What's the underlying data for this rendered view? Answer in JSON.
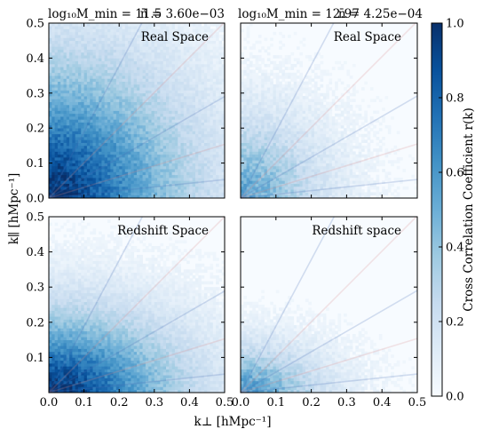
{
  "chart_data": {
    "type": "heatmap",
    "panels": [
      {
        "id": "top-left",
        "label": "Real Space",
        "title_left": "log₁₀M_min = 11.5",
        "title_right": "n̄ = 3.60e−03",
        "intensity": 1.0,
        "extent": 0.58,
        "anisotropy": 1.0
      },
      {
        "id": "top-right",
        "label": "Real Space",
        "title_left": "log₁₀M_min = 12.97",
        "title_right": "n̄ = 4.25e−04",
        "intensity": 0.55,
        "extent": 0.36,
        "anisotropy": 1.0
      },
      {
        "id": "bottom-left",
        "label": "Redshift Space",
        "title_left": "",
        "title_right": "",
        "intensity": 1.0,
        "extent": 0.55,
        "anisotropy": 0.62
      },
      {
        "id": "bottom-right",
        "label": "Redshift space",
        "title_left": "",
        "title_right": "",
        "intensity": 0.6,
        "extent": 0.36,
        "anisotropy": 0.58
      }
    ],
    "x_range": [
      0.0,
      0.5
    ],
    "y_range": [
      0.0,
      0.5
    ],
    "x_ticks": [
      "0.0",
      "0.1",
      "0.2",
      "0.3",
      "0.4",
      "0.5"
    ],
    "y_ticks_top": [
      "0.0",
      "0.1",
      "0.2",
      "0.3",
      "0.4",
      "0.5"
    ],
    "y_ticks_bottom": [
      "0.1",
      "0.2",
      "0.3",
      "0.4",
      "0.5"
    ],
    "xlabel": "k⊥ [hMpc⁻¹]",
    "ylabel": "k∥ [hMpc⁻¹]",
    "colorbar": {
      "label": "Cross Correlation Coefficient r(k)",
      "range": [
        0.0,
        1.0
      ],
      "ticks": [
        "0.0",
        "0.2",
        "0.4",
        "0.6",
        "0.8",
        "1.0"
      ],
      "colormap": "Blues",
      "stops": [
        "#f7fbff",
        "#deebf7",
        "#c6dbef",
        "#9ecae1",
        "#6baed6",
        "#4292c6",
        "#2171b5",
        "#08519c",
        "#08306b"
      ]
    },
    "mu_wedge_angles_deg": [
      6,
      17,
      30,
      45,
      62
    ],
    "mu_wedge_colors": [
      "#4a6fb5",
      "#d98a8a"
    ]
  }
}
